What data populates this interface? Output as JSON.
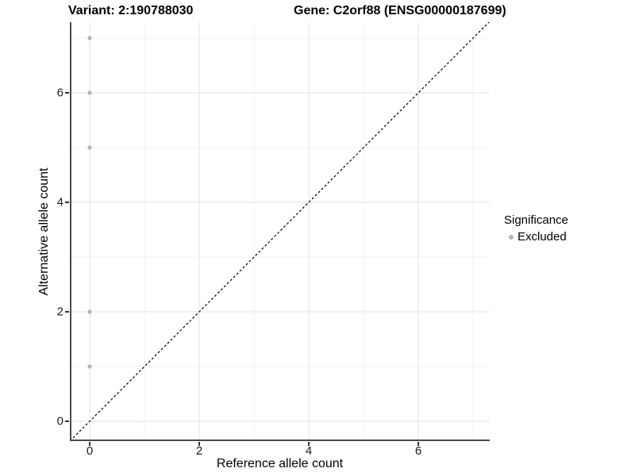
{
  "header": {
    "variant_title": "Variant: 2:190788030",
    "gene_title": "Gene: C2orf88 (ENSG00000187699)"
  },
  "chart_data": {
    "type": "scatter",
    "xlabel": "Reference allele count",
    "ylabel": "Alternative allele count",
    "x_ticks": [
      0,
      2,
      4,
      6
    ],
    "y_ticks": [
      0,
      2,
      4,
      6
    ],
    "xlim": [
      -0.36,
      7.3
    ],
    "ylim": [
      -0.36,
      7.29
    ],
    "grid": "on",
    "grid_integers": [
      0,
      1,
      2,
      3,
      4,
      5,
      6,
      7
    ],
    "series": [
      {
        "name": "Excluded",
        "color": "#b3b3b3",
        "points": [
          [
            0,
            1
          ],
          [
            0,
            2
          ],
          [
            0,
            5
          ],
          [
            0,
            6
          ],
          [
            0,
            7
          ]
        ]
      }
    ],
    "identity_line": {
      "type": "y=x",
      "style": "dashed",
      "color": "#000000"
    },
    "legend": {
      "title": "Significance",
      "position": "right",
      "entries": [
        {
          "label": "Excluded",
          "color": "#b3b3b3"
        }
      ]
    },
    "style": {
      "grid_major_color": "#e3e3e3",
      "grid_minor_color": "#f1f1f1",
      "axis_line_color": "#4a4a4a",
      "background": "#ffffff"
    }
  }
}
